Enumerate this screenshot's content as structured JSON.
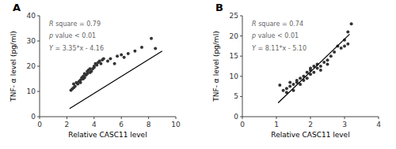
{
  "chart_data": [
    {
      "type": "scatter",
      "title": "A",
      "xlabel": "Relative CASC11 level",
      "ylabel": "TNF- α level (pg/ml)",
      "annotations": [
        "R square = 0.79",
        "p value < 0.01",
        "Y = 3.35*x - 4.16"
      ],
      "series": [
        {
          "type": "scatter",
          "color": "#333333",
          "x": [
            2.3,
            2.4,
            2.5,
            2.5,
            2.6,
            2.7,
            2.8,
            2.9,
            3.0,
            3.0,
            3.1,
            3.1,
            3.2,
            3.2,
            3.3,
            3.3,
            3.4,
            3.5,
            3.5,
            3.6,
            3.7,
            3.7,
            3.8,
            3.9,
            4.0,
            4.0,
            4.1,
            4.2,
            4.3,
            4.4,
            4.5,
            4.6,
            4.7,
            5.0,
            5.2,
            5.5,
            5.7,
            6.0,
            6.2,
            6.5,
            7.0,
            7.5,
            8.2,
            8.5
          ],
          "values": [
            10.5,
            11.0,
            11.5,
            13.0,
            12.0,
            13.5,
            13.0,
            14.0,
            13.5,
            14.5,
            15.0,
            15.5,
            15.0,
            16.0,
            15.5,
            17.0,
            16.5,
            17.0,
            18.0,
            18.5,
            19.0,
            17.5,
            18.0,
            19.0,
            19.5,
            20.0,
            21.0,
            20.5,
            21.5,
            22.0,
            21.0,
            22.5,
            23.0,
            22.0,
            23.0,
            21.0,
            24.0,
            24.5,
            23.5,
            25.0,
            26.0,
            27.5,
            31.0,
            27.0
          ]
        },
        {
          "type": "line",
          "color": "#000000",
          "x": [
            2.2,
            9.0
          ],
          "values": [
            3.21,
            25.99
          ]
        }
      ],
      "xlim": [
        0,
        10
      ],
      "ylim": [
        0,
        40
      ],
      "xticks": [
        0,
        2,
        4,
        6,
        8,
        10
      ],
      "yticks": [
        0,
        10,
        20,
        30,
        40
      ],
      "grid": false
    },
    {
      "type": "scatter",
      "title": "B",
      "xlabel": "Relative CASC11 level",
      "ylabel": "TNF- α level (pg/ml)",
      "annotations": [
        "R square = 0.74",
        "p value < 0.01",
        "Y = 8.11*x - 5.10"
      ],
      "series": [
        {
          "type": "scatter",
          "color": "#333333",
          "x": [
            1.1,
            1.2,
            1.3,
            1.3,
            1.4,
            1.4,
            1.5,
            1.5,
            1.6,
            1.6,
            1.7,
            1.7,
            1.8,
            1.8,
            1.9,
            1.9,
            2.0,
            2.0,
            2.0,
            2.1,
            2.1,
            2.2,
            2.2,
            2.3,
            2.3,
            2.4,
            2.5,
            2.5,
            2.6,
            2.7,
            2.8,
            2.9,
            3.0,
            3.0,
            3.1,
            3.1,
            3.2
          ],
          "values": [
            7.8,
            6.5,
            6.0,
            7.0,
            7.5,
            8.5,
            6.5,
            8.0,
            8.5,
            9.0,
            8.0,
            9.5,
            9.0,
            10.0,
            9.5,
            11.0,
            11.5,
            10.5,
            12.0,
            11.0,
            12.5,
            12.0,
            13.0,
            12.5,
            11.5,
            13.5,
            14.0,
            13.0,
            15.0,
            16.0,
            17.5,
            17.0,
            17.5,
            19.0,
            18.0,
            21.0,
            23.0
          ]
        },
        {
          "type": "line",
          "color": "#000000",
          "x": [
            1.05,
            3.15
          ],
          "values": [
            3.4155,
            20.4465
          ]
        }
      ],
      "xlim": [
        0,
        4
      ],
      "ylim": [
        0,
        25
      ],
      "xticks": [
        0,
        1,
        2,
        3,
        4
      ],
      "yticks": [
        0,
        5,
        10,
        15,
        20,
        25
      ],
      "grid": false
    }
  ]
}
